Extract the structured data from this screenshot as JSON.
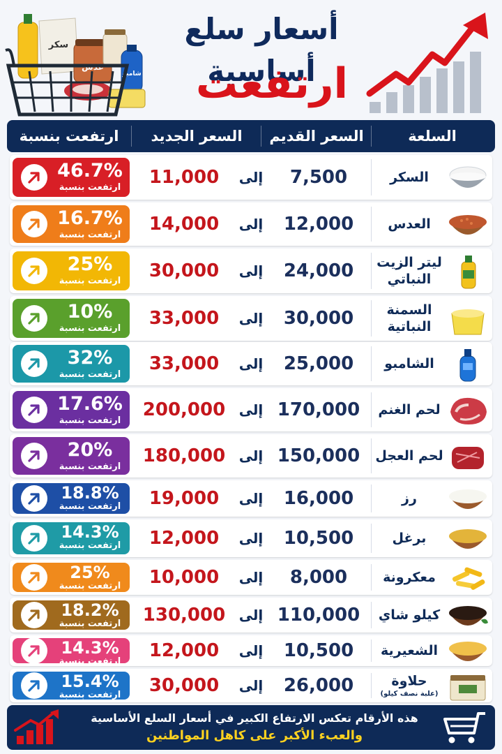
{
  "header": {
    "title_line1": "أسعار سلع أساسية",
    "title_line2": "ارتفعت !"
  },
  "table": {
    "columns": [
      "السلعة",
      "السعر القديم",
      "السعر الجديد",
      "ارتفعت بنسبة"
    ],
    "separator_word": "إلى",
    "badge_label": "ارتفعت بنسبة",
    "rows": [
      {
        "name": "السكر",
        "sub": "",
        "old": "7,500",
        "new": "11,000",
        "pct": "46.7%",
        "color": "#d81f26",
        "icon": "sugar-bowl-icon"
      },
      {
        "name": "العدس",
        "sub": "",
        "old": "12,000",
        "new": "14,000",
        "pct": "16.7%",
        "color": "#ef7d1a",
        "icon": "lentils-bowl-icon"
      },
      {
        "name": "ليتر الزيت النباتي",
        "sub": "",
        "old": "24,000",
        "new": "30,000",
        "pct": "25%",
        "color": "#f2b705",
        "icon": "oil-bottle-icon"
      },
      {
        "name": "السمنة النباتية",
        "sub": "",
        "old": "30,000",
        "new": "33,000",
        "pct": "10%",
        "color": "#5aa02c",
        "icon": "ghee-tub-icon"
      },
      {
        "name": "الشامبو",
        "sub": "",
        "old": "25,000",
        "new": "33,000",
        "pct": "32%",
        "color": "#1c98a8",
        "icon": "shampoo-bottle-icon"
      },
      {
        "name": "لحم الغنم",
        "sub": "",
        "old": "170,000",
        "new": "200,000",
        "pct": "17.6%",
        "color": "#6b2fa0",
        "icon": "lamb-meat-icon"
      },
      {
        "name": "لحم العجل",
        "sub": "",
        "old": "150,000",
        "new": "180,000",
        "pct": "20%",
        "color": "#7a2f9e",
        "icon": "beef-meat-icon"
      },
      {
        "name": "رز",
        "sub": "",
        "old": "16,000",
        "new": "19,000",
        "pct": "18.8%",
        "color": "#1e4fa6",
        "icon": "rice-bowl-icon"
      },
      {
        "name": "برغل",
        "sub": "",
        "old": "10,500",
        "new": "12,000",
        "pct": "14.3%",
        "color": "#1f9ba6",
        "icon": "bulgur-bowl-icon"
      },
      {
        "name": "معكرونة",
        "sub": "",
        "old": "8,000",
        "new": "10,000",
        "pct": "25%",
        "color": "#f08a1c",
        "icon": "pasta-icon"
      },
      {
        "name": "كيلو شاي",
        "sub": "",
        "old": "110,000",
        "new": "130,000",
        "pct": "18.2%",
        "color": "#a06a1e",
        "icon": "tea-bowl-icon"
      },
      {
        "name": "الشعيرية",
        "sub": "",
        "old": "10,500",
        "new": "12,000",
        "pct": "14.3%",
        "color": "#e5417a",
        "icon": "vermicelli-bowl-icon"
      },
      {
        "name": "حلاوة",
        "sub": "(علبة نصف كيلو)",
        "old": "26,000",
        "new": "30,000",
        "pct": "15.4%",
        "color": "#1e74c8",
        "icon": "halva-tub-icon"
      }
    ]
  },
  "footer": {
    "line1": "هذه الأرقام تعكس الارتفاع الكبير في أسعار السلع الأساسية",
    "line2": "والعبء الأكبر على كاهل المواطنين"
  },
  "basket_labels": [
    "سكر",
    "عدس",
    "شامبو"
  ]
}
